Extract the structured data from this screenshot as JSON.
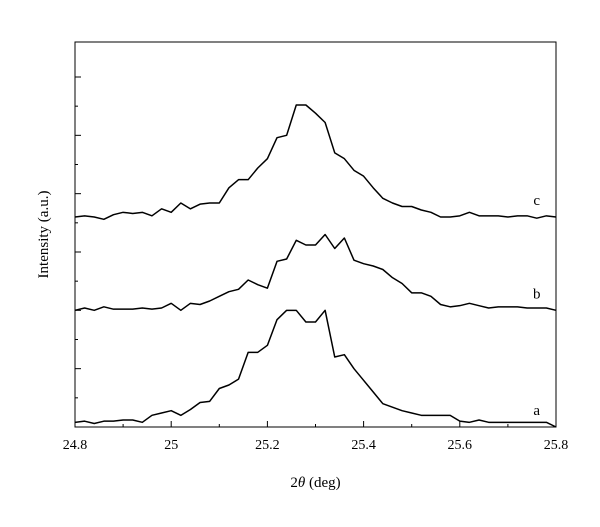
{
  "chart_data": {
    "type": "line",
    "xlabel": "2θ (deg)",
    "xlabel_main": "2",
    "xlabel_theta": "θ",
    "xlabel_unit": " (deg)",
    "ylabel": "Intensity (a.u.)",
    "xlim": [
      24.8,
      25.8
    ],
    "ylim": [
      0,
      3.3
    ],
    "x_ticks": [
      24.8,
      25,
      25.2,
      25.4,
      25.6,
      25.8
    ],
    "x_tick_labels": [
      "24.8",
      "25",
      "25.2",
      "25.4",
      "25.6",
      "25.8"
    ],
    "y_tick_labels_shown": false,
    "grid": false,
    "legend": "none",
    "line_color": "#000000",
    "series": [
      {
        "name": "a",
        "x": [
          24.8,
          24.82,
          24.84,
          24.86,
          24.88,
          24.9,
          24.92,
          24.94,
          24.96,
          24.98,
          25.0,
          25.02,
          25.04,
          25.06,
          25.08,
          25.1,
          25.12,
          25.14,
          25.16,
          25.18,
          25.2,
          25.22,
          25.24,
          25.26,
          25.28,
          25.3,
          25.32,
          25.34,
          25.36,
          25.38,
          25.4,
          25.42,
          25.44,
          25.46,
          25.48,
          25.5,
          25.52,
          25.54,
          25.56,
          25.58,
          25.6,
          25.62,
          25.64,
          25.66,
          25.68,
          25.7,
          25.72,
          25.74,
          25.76,
          25.78,
          25.8
        ],
        "y": [
          0.04,
          0.05,
          0.03,
          0.05,
          0.05,
          0.06,
          0.06,
          0.04,
          0.1,
          0.12,
          0.14,
          0.1,
          0.15,
          0.21,
          0.22,
          0.33,
          0.36,
          0.41,
          0.64,
          0.64,
          0.7,
          0.92,
          1.0,
          1.0,
          0.9,
          0.9,
          1.0,
          0.6,
          0.62,
          0.5,
          0.4,
          0.3,
          0.2,
          0.17,
          0.14,
          0.12,
          0.1,
          0.1,
          0.1,
          0.1,
          0.05,
          0.04,
          0.06,
          0.04,
          0.04,
          0.04,
          0.04,
          0.04,
          0.04,
          0.04,
          0.0
        ]
      },
      {
        "name": "b",
        "x": [
          24.8,
          24.82,
          24.84,
          24.86,
          24.88,
          24.9,
          24.92,
          24.94,
          24.96,
          24.98,
          25.0,
          25.02,
          25.04,
          25.06,
          25.08,
          25.1,
          25.12,
          25.14,
          25.16,
          25.18,
          25.2,
          25.22,
          25.24,
          25.26,
          25.28,
          25.3,
          25.32,
          25.34,
          25.36,
          25.38,
          25.4,
          25.42,
          25.44,
          25.46,
          25.48,
          25.5,
          25.52,
          25.54,
          25.56,
          25.58,
          25.6,
          25.62,
          25.64,
          25.66,
          25.68,
          25.7,
          25.72,
          25.74,
          25.76,
          25.78,
          25.8
        ],
        "y": [
          1.0,
          1.02,
          1.0,
          1.03,
          1.01,
          1.01,
          1.01,
          1.02,
          1.01,
          1.02,
          1.06,
          1.0,
          1.06,
          1.05,
          1.08,
          1.12,
          1.16,
          1.18,
          1.26,
          1.22,
          1.19,
          1.42,
          1.44,
          1.6,
          1.56,
          1.56,
          1.65,
          1.53,
          1.62,
          1.43,
          1.4,
          1.38,
          1.35,
          1.28,
          1.23,
          1.15,
          1.15,
          1.12,
          1.05,
          1.03,
          1.04,
          1.06,
          1.04,
          1.02,
          1.03,
          1.03,
          1.03,
          1.02,
          1.02,
          1.02,
          1.0
        ]
      },
      {
        "name": "c",
        "x": [
          24.8,
          24.82,
          24.84,
          24.86,
          24.88,
          24.9,
          24.92,
          24.94,
          24.96,
          24.98,
          25.0,
          25.02,
          25.04,
          25.06,
          25.08,
          25.1,
          25.12,
          25.14,
          25.16,
          25.18,
          25.2,
          25.22,
          25.24,
          25.26,
          25.28,
          25.3,
          25.32,
          25.34,
          25.36,
          25.38,
          25.4,
          25.42,
          25.44,
          25.46,
          25.48,
          25.5,
          25.52,
          25.54,
          25.56,
          25.58,
          25.6,
          25.62,
          25.64,
          25.66,
          25.68,
          25.7,
          25.72,
          25.74,
          25.76,
          25.78,
          25.8
        ],
        "y": [
          1.8,
          1.81,
          1.8,
          1.78,
          1.82,
          1.84,
          1.83,
          1.84,
          1.81,
          1.87,
          1.84,
          1.92,
          1.87,
          1.91,
          1.92,
          1.92,
          2.05,
          2.12,
          2.12,
          2.22,
          2.3,
          2.48,
          2.5,
          2.76,
          2.76,
          2.69,
          2.61,
          2.35,
          2.3,
          2.2,
          2.15,
          2.05,
          1.96,
          1.92,
          1.89,
          1.89,
          1.86,
          1.84,
          1.8,
          1.8,
          1.81,
          1.84,
          1.81,
          1.81,
          1.81,
          1.8,
          1.81,
          1.81,
          1.79,
          1.81,
          1.8
        ]
      }
    ]
  }
}
